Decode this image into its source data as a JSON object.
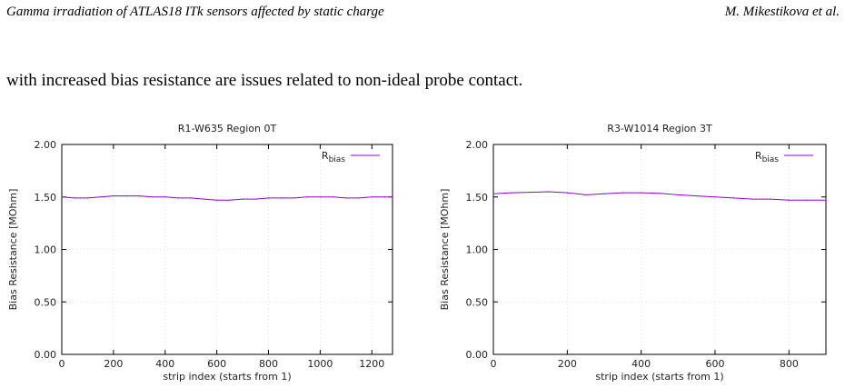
{
  "header": {
    "title": "Gamma irradiation of ATLAS18 ITk sensors affected by static charge",
    "authors": "M. Mikestikova et al."
  },
  "body_text": "with increased bias resistance are issues related to non-ideal probe contact.",
  "chart_data": [
    {
      "type": "line",
      "title": "R1-W635 Region 0T",
      "xlabel": "strip index (starts from 1)",
      "ylabel": "Bias Resistance [MOhm]",
      "xlim": [
        0,
        1280
      ],
      "ylim": [
        0,
        2.0
      ],
      "xticks": [
        0,
        200,
        400,
        600,
        800,
        1000,
        1200
      ],
      "yticks": [
        "0.00",
        "0.50",
        "1.00",
        "1.50",
        "2.00"
      ],
      "grid": true,
      "legend_placement": "top-right",
      "series": [
        {
          "name": "R_bias",
          "color": "#9400d3",
          "x": [
            0,
            50,
            100,
            150,
            200,
            250,
            300,
            350,
            400,
            450,
            500,
            550,
            600,
            650,
            700,
            750,
            800,
            850,
            900,
            950,
            1000,
            1050,
            1100,
            1150,
            1200,
            1250,
            1280
          ],
          "y": [
            1.5,
            1.49,
            1.49,
            1.5,
            1.51,
            1.51,
            1.51,
            1.5,
            1.5,
            1.49,
            1.49,
            1.48,
            1.47,
            1.47,
            1.48,
            1.48,
            1.49,
            1.49,
            1.49,
            1.5,
            1.5,
            1.5,
            1.49,
            1.49,
            1.5,
            1.5,
            1.5
          ]
        }
      ]
    },
    {
      "type": "line",
      "title": "R3-W1014 Region 3T",
      "xlabel": "strip index (starts from 1)",
      "ylabel": "Bias Resistance [MOhm]",
      "xlim": [
        0,
        900
      ],
      "ylim": [
        0,
        2.0
      ],
      "xticks": [
        0,
        200,
        400,
        600,
        800
      ],
      "yticks": [
        "0.00",
        "0.50",
        "1.00",
        "1.50",
        "2.00"
      ],
      "grid": true,
      "legend_placement": "top-right",
      "series": [
        {
          "name": "R_bias",
          "color": "#9400d3",
          "x": [
            0,
            50,
            100,
            150,
            200,
            250,
            300,
            350,
            400,
            450,
            500,
            550,
            600,
            650,
            700,
            750,
            800,
            850,
            900
          ],
          "y": [
            1.53,
            1.54,
            1.545,
            1.55,
            1.54,
            1.52,
            1.53,
            1.54,
            1.54,
            1.535,
            1.52,
            1.51,
            1.5,
            1.49,
            1.48,
            1.48,
            1.47,
            1.47,
            1.47
          ]
        }
      ]
    }
  ]
}
